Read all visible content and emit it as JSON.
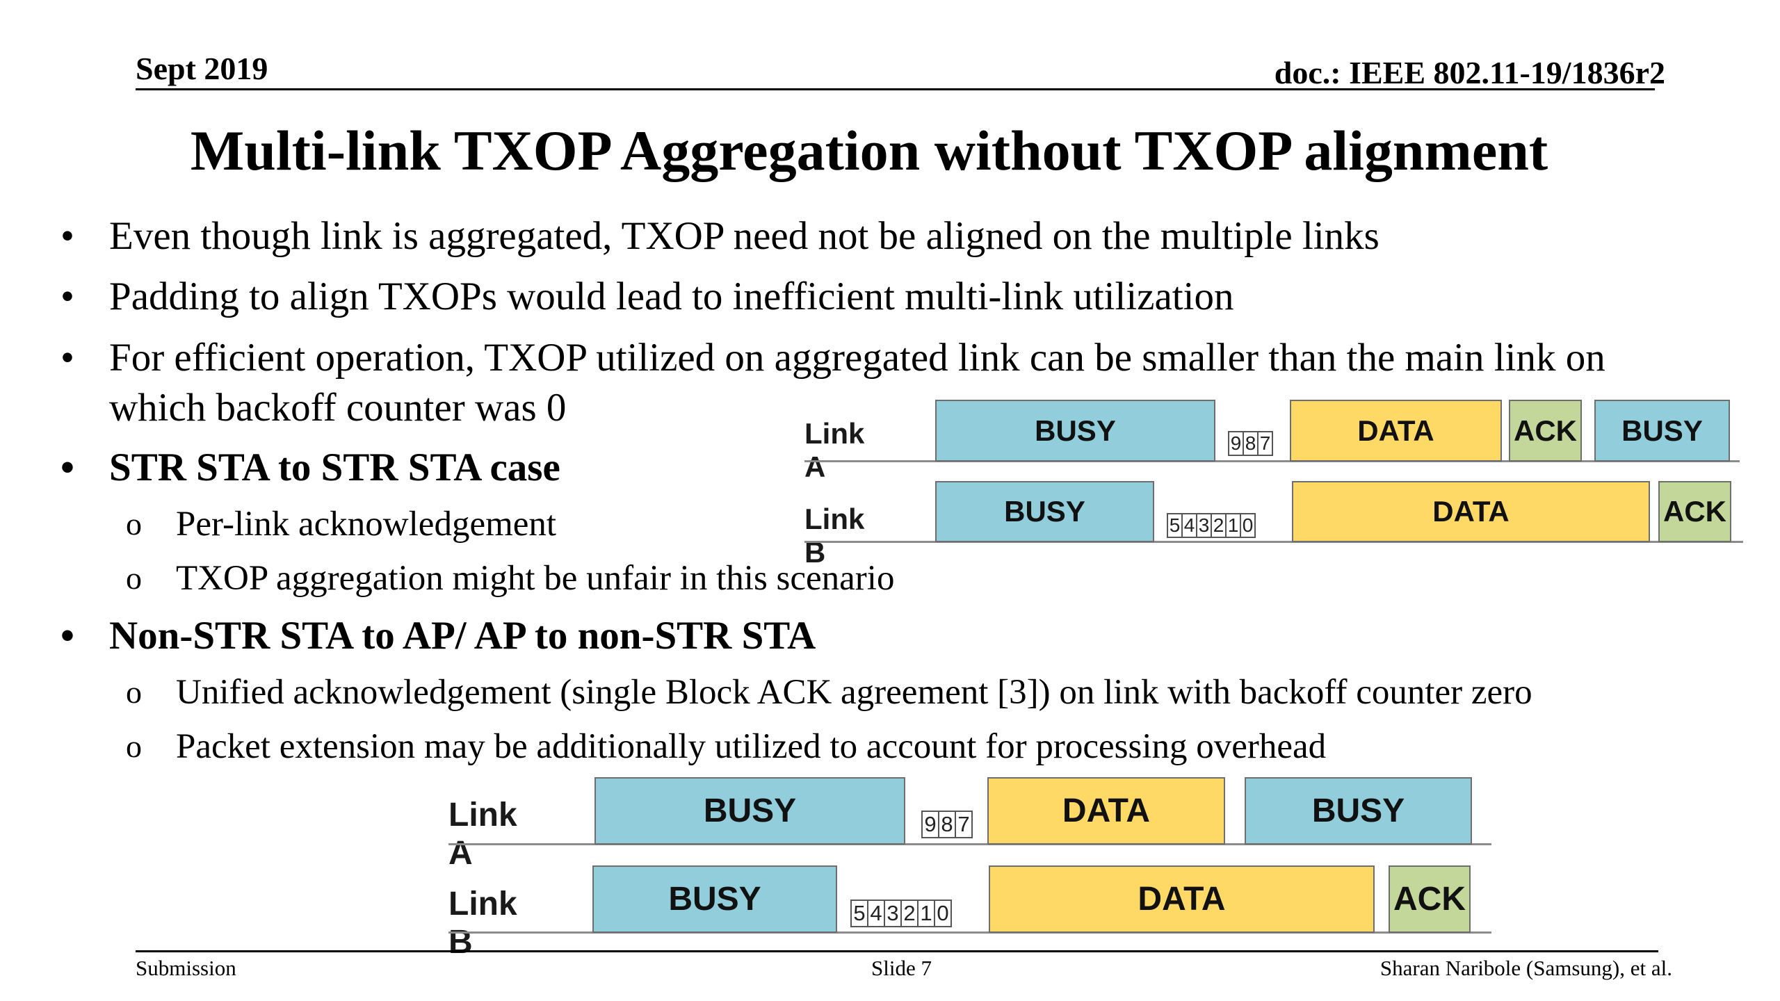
{
  "header": {
    "date": "Sept 2019",
    "doc": "doc.: IEEE 802.11-19/1836r2"
  },
  "title": "Multi-link TXOP Aggregation without TXOP alignment",
  "bullets": [
    {
      "bullet": "•",
      "text": "Even though link is aggregated, TXOP need not be aligned on the multiple links"
    },
    {
      "bullet": "•",
      "text": "Padding to align TXOPs would lead to inefficient multi-link utilization"
    },
    {
      "bullet": "•",
      "text": "For efficient operation, TXOP utilized on aggregated link can be smaller than the main link on",
      "cont": "which backoff counter was 0"
    },
    {
      "bullet": "•",
      "text": "STR STA to STR STA case"
    },
    {
      "bullet": "•",
      "text": "Non-STR STA to AP/ AP to non-STR STA"
    }
  ],
  "sub_bullets": [
    {
      "bullet": "o",
      "text": "Per-link acknowledgement"
    },
    {
      "bullet": "o",
      "text": "TXOP aggregation might be unfair in this scenario"
    },
    {
      "bullet": "o",
      "text": "Unified acknowledgement (single Block ACK agreement [3]) on link with backoff counter zero"
    },
    {
      "bullet": "o",
      "text": "Packet extension may be additionally utilized to account for processing overhead"
    }
  ],
  "diagram1": {
    "link_a": {
      "label": "Link A",
      "busy1": "BUSY",
      "counter": [
        "9",
        "8",
        "7"
      ],
      "data": "DATA",
      "ack": "ACK",
      "busy2": "BUSY"
    },
    "link_b": {
      "label": "Link B",
      "busy": "BUSY",
      "counter": [
        "5",
        "4",
        "3",
        "2",
        "1",
        "0"
      ],
      "data": "DATA",
      "ack": "ACK"
    }
  },
  "diagram2": {
    "link_a": {
      "label": "Link A",
      "busy1": "BUSY",
      "counter": [
        "9",
        "8",
        "7"
      ],
      "data": "DATA",
      "busy2": "BUSY"
    },
    "link_b": {
      "label": "Link B",
      "busy": "BUSY",
      "counter": [
        "5",
        "4",
        "3",
        "2",
        "1",
        "0"
      ],
      "data": "DATA",
      "ack": "ACK"
    }
  },
  "footer": {
    "left": "Submission",
    "center": "Slide 7",
    "right": "Sharan Naribole (Samsung), et al."
  },
  "colors": {
    "busy": "#92cddc",
    "data": "#ffd966",
    "ack": "#c4d79b"
  }
}
